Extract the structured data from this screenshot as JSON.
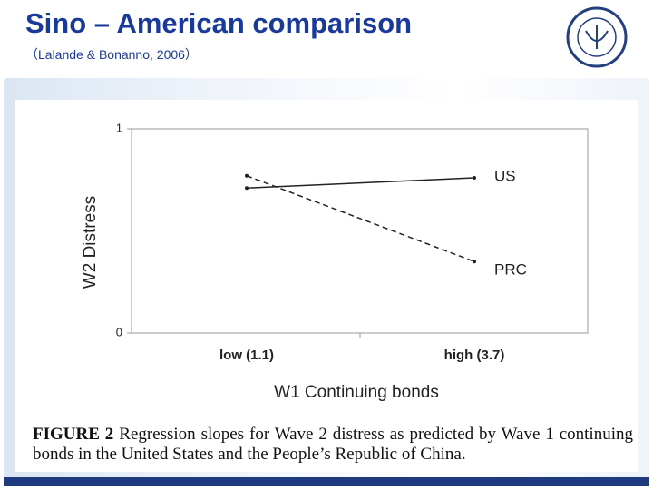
{
  "slide": {
    "title": "Sino – American comparison",
    "subtitle": "（Lalande & Bonanno, 2006）"
  },
  "chart_data": {
    "type": "line",
    "categories": [
      "low (1.1)",
      "high (3.7)"
    ],
    "series": [
      {
        "name": "US",
        "color": "#222222",
        "line_style": "solid",
        "values": [
          0.71,
          0.76
        ]
      },
      {
        "name": "PRC",
        "color": "#222222",
        "line_style": "dashed",
        "values": [
          0.77,
          0.35
        ]
      }
    ],
    "ylim": [
      0,
      1
    ],
    "yticks": [
      0,
      1
    ],
    "y_label": "W2 Distress",
    "x_label": "W1 Continuing bonds",
    "caption_label": "FIGURE 2",
    "caption_text": "Regression slopes for Wave 2 distress as predicted by Wave 1 continuing bonds in the United States and the People’s Republic of China."
  }
}
